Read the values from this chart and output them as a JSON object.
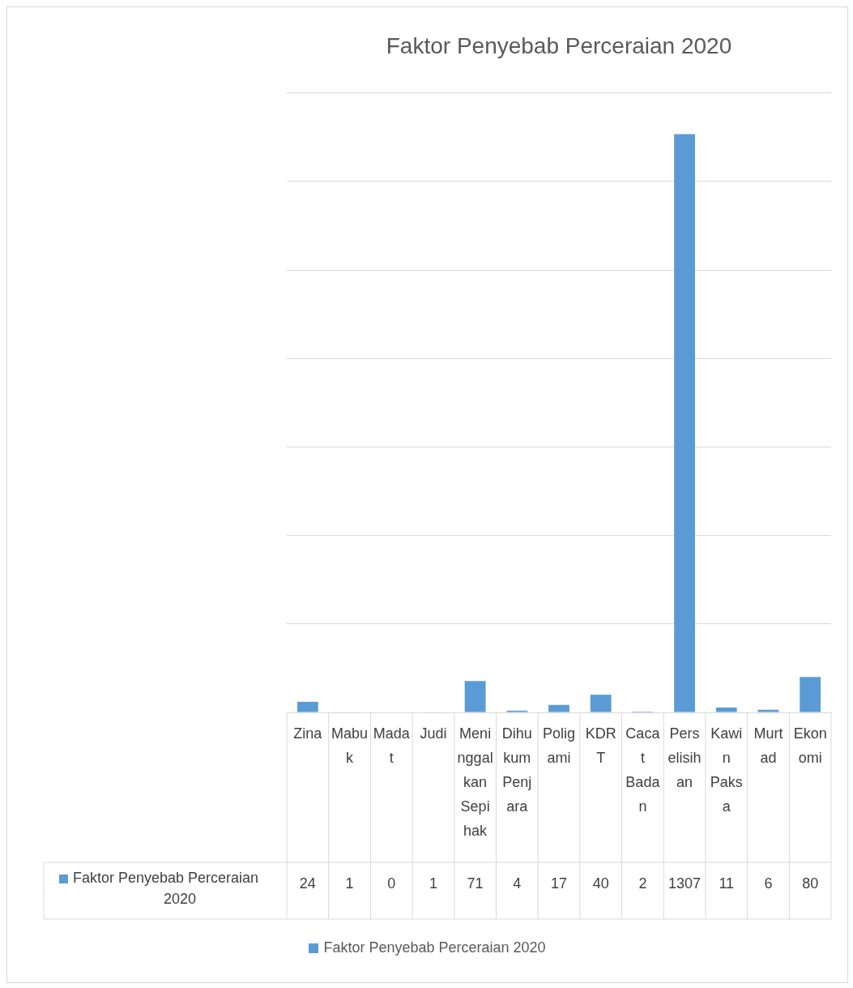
{
  "chart_data": {
    "type": "bar",
    "title": "Faktor Penyebab Perceraian 2020",
    "categories": [
      "Zina",
      "Mabuk",
      "Madat",
      "Judi",
      "Meninggalkan Sepihak",
      "Dihukum Penjara",
      "Poligami",
      "KDRT",
      "Cacat Badan",
      "Perselisihan",
      "Kawin Paksa",
      "Murtad",
      "Ekonomi"
    ],
    "series": [
      {
        "name": "Faktor Penyebab Perceraian 2020",
        "color": "#5b9bd5",
        "values": [
          24,
          1,
          0,
          1,
          71,
          4,
          17,
          40,
          2,
          1307,
          11,
          6,
          80
        ]
      }
    ],
    "ylim": [
      0,
      1400
    ],
    "yticks": [
      {
        "value": 0,
        "label": null
      },
      {
        "value": 200,
        "label": null
      },
      {
        "value": 400,
        "label": null
      },
      {
        "value": 600,
        "label": null
      },
      {
        "value": 800,
        "label": null
      },
      {
        "value": 1000,
        "label": null
      },
      {
        "value": 1200,
        "label": null
      },
      {
        "value": 1400,
        "label": null
      }
    ],
    "tick_labels": "x",
    "grid": "y",
    "legend": "bottom",
    "data_labels": true
  }
}
